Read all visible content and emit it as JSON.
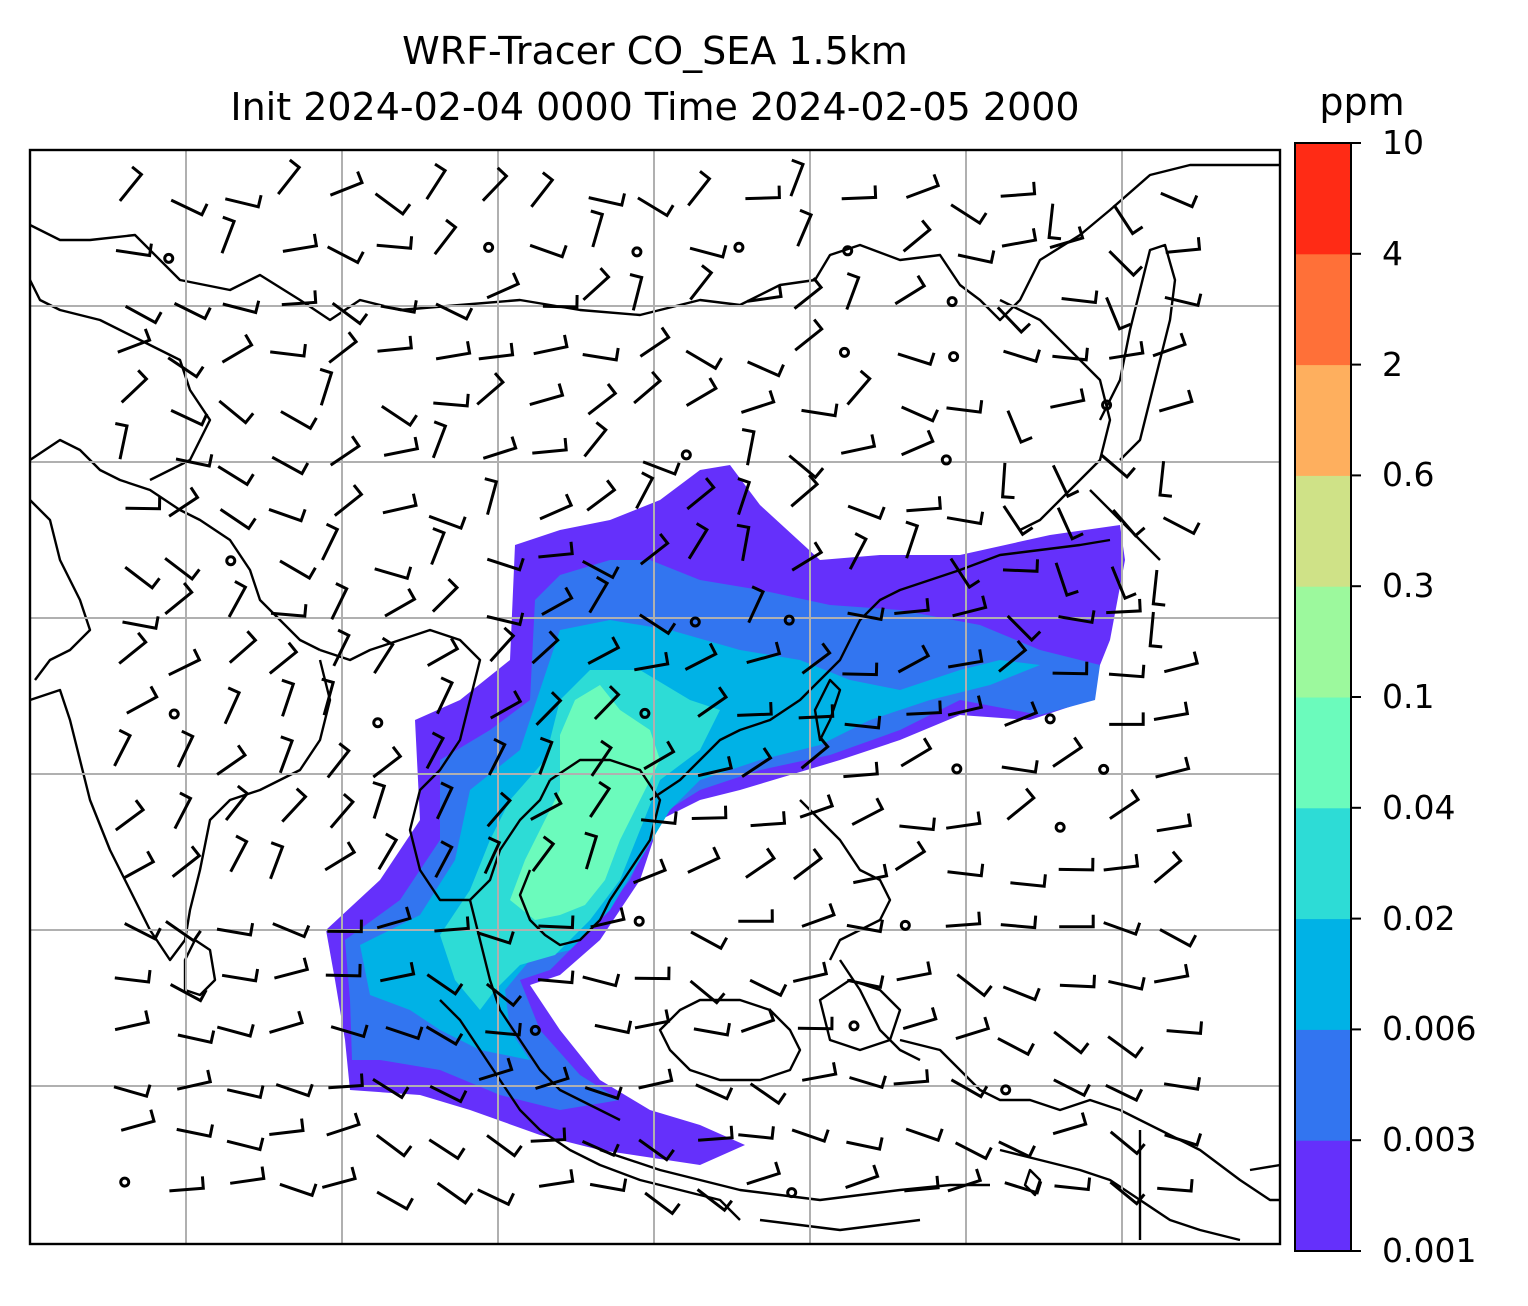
{
  "title": {
    "line1": "WRF-Tracer CO_SEA 1.5km",
    "line2": "Init 2024-02-04 0000 Time 2024-02-05 2000"
  },
  "colorbar": {
    "unit": "ppm",
    "levels": [
      "0.001",
      "0.003",
      "0.006",
      "0.02",
      "0.04",
      "0.1",
      "0.3",
      "0.6",
      "2",
      "4",
      "10"
    ],
    "colors": [
      "#6530fb",
      "#3275f0",
      "#00b2e6",
      "#2ddcd6",
      "#6bfbbc",
      "#9cf99d",
      "#cfe287",
      "#feaf5e",
      "#ff7038",
      "#ff2b15"
    ]
  },
  "map": {
    "gridlines": true,
    "field": "CO tracer concentration",
    "plume_colors": [
      "#6530fb",
      "#3275f0",
      "#00b2e6",
      "#2ddcd6",
      "#6bfbbc"
    ],
    "wind_barbs": true
  }
}
